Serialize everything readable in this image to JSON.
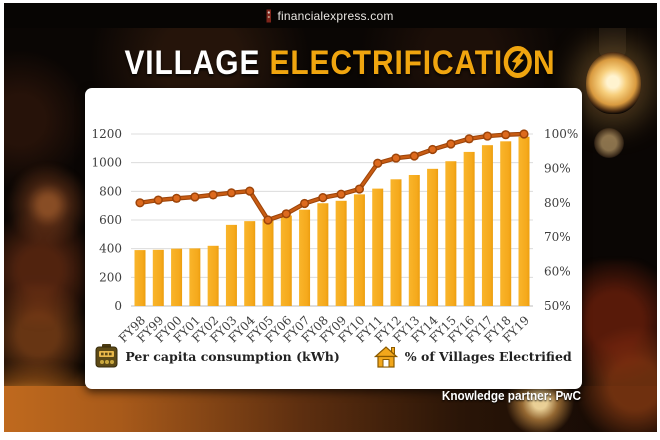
{
  "masthead": {
    "site": "financialexpress.com"
  },
  "title": {
    "word1": "VILLAGE",
    "word2_pre": "ELECTRIFICATI",
    "word2_post": "N"
  },
  "footer": {
    "knowledge_partner": "Knowledge partner: PwC"
  },
  "legend": {
    "items": [
      {
        "icon": "electricity-meter-icon",
        "label": "Per capita consumption (kWh)"
      },
      {
        "icon": "house-icon",
        "label": "% of Villages Electrified"
      }
    ]
  },
  "colors": {
    "bar": "#F5A91C",
    "bar_light": "#F9B52B",
    "bar_dark": "#EC9E0E",
    "line": "#C85C13",
    "line_outline": "#9d4409",
    "marker_fill": "#DD6A1E",
    "grid": "#DCDCDC",
    "baseline": "#C9C9C9",
    "tick_text": "#3d3d3d",
    "accent_gold": "#F0A50F"
  },
  "chart_data": {
    "type": "bar",
    "title": "VILLAGE ELECTRIFICATION",
    "categories": [
      "FY98",
      "FY99",
      "FY00",
      "FY01",
      "FY02",
      "FY03",
      "FY04",
      "FY05",
      "FY06",
      "FY07",
      "FY08",
      "FY09",
      "FY10",
      "FY11",
      "FY12",
      "FY13",
      "FY14",
      "FY15",
      "FY16",
      "FY17",
      "FY18",
      "FY19"
    ],
    "series": [
      {
        "name": "Per capita consumption (kWh)",
        "type": "bar",
        "axis": "left",
        "values": [
          390,
          392,
          400,
          402,
          420,
          566,
          592,
          606,
          631,
          672,
          717,
          734,
          779,
          819,
          884,
          914,
          957,
          1010,
          1075,
          1122,
          1149,
          1181
        ]
      },
      {
        "name": "% of Villages Electrified",
        "type": "line",
        "axis": "right",
        "values": [
          80,
          80.8,
          81.3,
          81.7,
          82.3,
          82.9,
          83.4,
          75,
          76.8,
          79.8,
          81.5,
          82.5,
          84,
          91.5,
          93,
          93.6,
          95.5,
          97.1,
          98.6,
          99.4,
          99.8,
          100
        ]
      }
    ],
    "left_axis": {
      "ticks": [
        0,
        200,
        400,
        600,
        800,
        1000,
        1200
      ],
      "range": [
        0,
        1200
      ]
    },
    "right_axis": {
      "ticks": [
        "50%",
        "60%",
        "70%",
        "80%",
        "90%",
        "100%"
      ],
      "range": [
        50,
        100
      ]
    },
    "grid": true,
    "legend_position": "bottom"
  }
}
